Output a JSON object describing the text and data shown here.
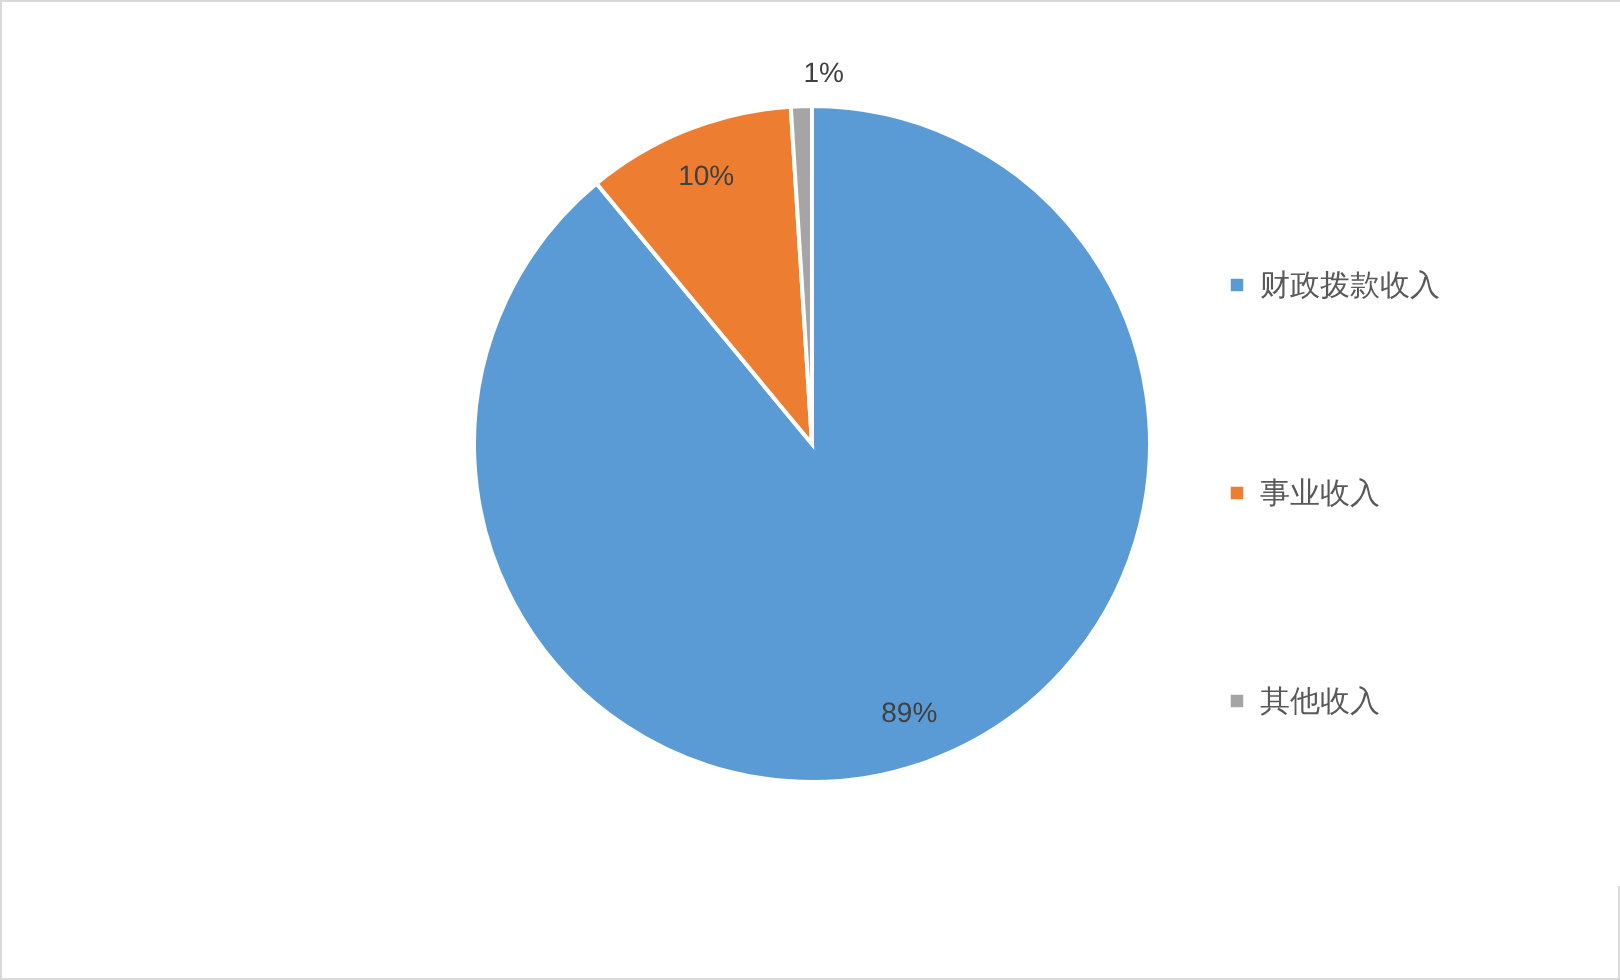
{
  "chart_data": {
    "type": "pie",
    "categories": [
      "财政拨款收入",
      "事业收入",
      "其他收入"
    ],
    "values": [
      89,
      10,
      1
    ],
    "colors": [
      "#5b9bd5",
      "#ed7d31",
      "#a5a5a5"
    ],
    "value_labels": [
      "89%",
      "10%",
      "1%"
    ],
    "legend": "right"
  }
}
